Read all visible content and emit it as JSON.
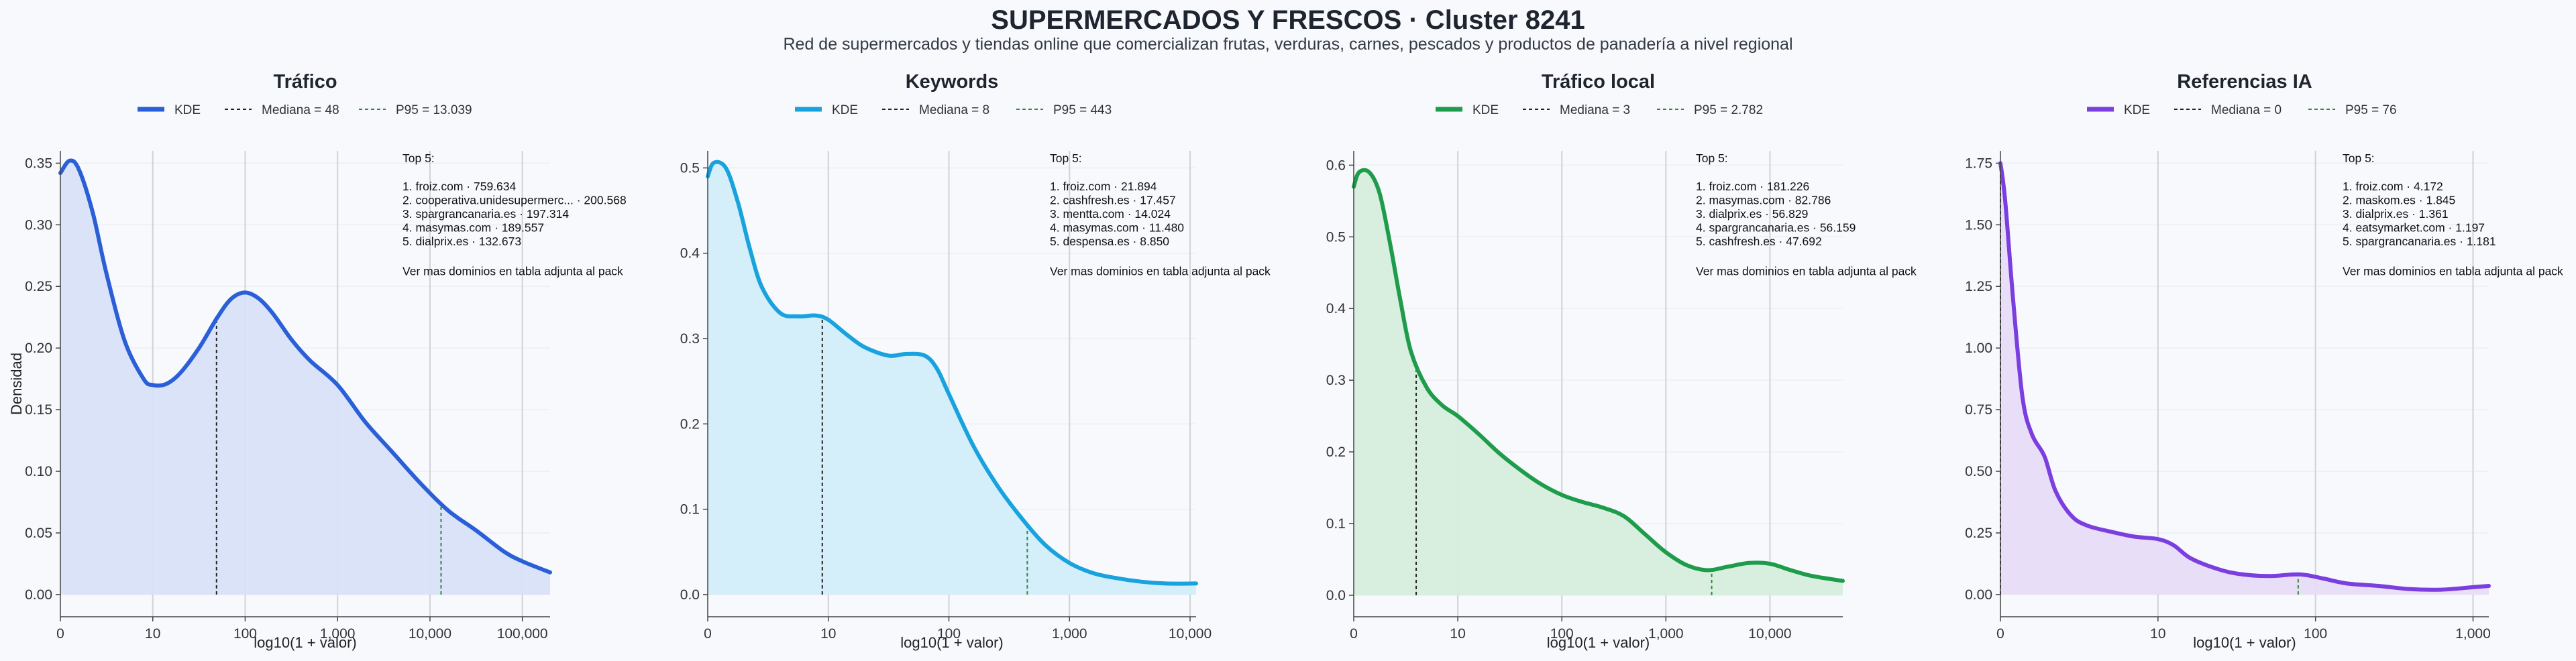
{
  "title": "SUPERMERCADOS Y FRESCOS · Cluster 8241",
  "subtitle": "Red de supermercados y tiendas online que comercializan frutas, verduras, carnes, pescados y productos de panadería a nivel regional",
  "chart_data": [
    {
      "type": "area",
      "title": "Tráfico",
      "color": "#2a5fd8",
      "fill": "#d8e2f8",
      "legend": [
        "KDE",
        "Mediana = 48",
        "P95 = 13.039"
      ],
      "xlabel": "log10(1 + valor)",
      "ylabel": "Densidad",
      "xlim": [
        0,
        5.3
      ],
      "ylim": [
        -0.018,
        0.36
      ],
      "xticks": [
        0,
        1,
        2,
        3,
        4,
        5
      ],
      "xtick_labels": [
        "0",
        "10",
        "100",
        "1,000",
        "10,000",
        "100,000"
      ],
      "yticks": [
        0,
        0.05,
        0.1,
        0.15,
        0.2,
        0.25,
        0.3,
        0.35
      ],
      "ytick_labels": [
        "0.00",
        "0.05",
        "0.10",
        "0.15",
        "0.20",
        "0.25",
        "0.30",
        "0.35"
      ],
      "median_x": 1.69,
      "p95_x": 4.12,
      "x": [
        0,
        0.1,
        0.2,
        0.35,
        0.5,
        0.7,
        0.9,
        1.0,
        1.15,
        1.3,
        1.5,
        1.7,
        1.85,
        2.0,
        2.15,
        2.3,
        2.5,
        2.7,
        3.0,
        3.3,
        3.6,
        3.9,
        4.2,
        4.5,
        4.8,
        5.0,
        5.3
      ],
      "y": [
        0.342,
        0.352,
        0.345,
        0.31,
        0.26,
        0.205,
        0.175,
        0.17,
        0.171,
        0.18,
        0.2,
        0.225,
        0.24,
        0.245,
        0.24,
        0.228,
        0.207,
        0.19,
        0.17,
        0.14,
        0.115,
        0.09,
        0.068,
        0.052,
        0.035,
        0.027,
        0.018
      ],
      "top5_title": "Top 5:",
      "top5": [
        "1. froiz.com · 759.634",
        "2. cooperativa.unidesupermerc... · 200.568",
        "3. spargrancanaria.es · 197.314",
        "4. masymas.com · 189.557",
        "5. dialprix.es · 132.673"
      ],
      "note": "Ver mas dominios en tabla adjunta al pack"
    },
    {
      "type": "area",
      "title": "Keywords",
      "color": "#19a3de",
      "fill": "#d2eefa",
      "legend": [
        "KDE",
        "Mediana = 8",
        "P95 = 443"
      ],
      "xlabel": "log10(1 + valor)",
      "ylabel": "",
      "xlim": [
        0,
        4.05
      ],
      "ylim": [
        -0.026,
        0.52
      ],
      "xticks": [
        0,
        1,
        2,
        3,
        4
      ],
      "xtick_labels": [
        "0",
        "10",
        "100",
        "1,000",
        "10,000"
      ],
      "yticks": [
        0,
        0.1,
        0.2,
        0.3,
        0.4,
        0.5
      ],
      "ytick_labels": [
        "0.0",
        "0.1",
        "0.2",
        "0.3",
        "0.4",
        "0.5"
      ],
      "median_x": 0.95,
      "p95_x": 2.65,
      "x": [
        0,
        0.05,
        0.15,
        0.25,
        0.35,
        0.45,
        0.6,
        0.75,
        0.9,
        1.0,
        1.15,
        1.3,
        1.5,
        1.65,
        1.8,
        1.9,
        2.0,
        2.2,
        2.4,
        2.6,
        2.8,
        3.0,
        3.2,
        3.4,
        3.6,
        3.8,
        4.05
      ],
      "y": [
        0.49,
        0.506,
        0.5,
        0.46,
        0.405,
        0.36,
        0.33,
        0.326,
        0.327,
        0.322,
        0.305,
        0.29,
        0.28,
        0.282,
        0.28,
        0.265,
        0.235,
        0.175,
        0.128,
        0.09,
        0.058,
        0.037,
        0.025,
        0.019,
        0.015,
        0.013,
        0.013
      ],
      "top5_title": "Top 5:",
      "top5": [
        "1. froiz.com · 21.894",
        "2. cashfresh.es · 17.457",
        "3. mentta.com · 14.024",
        "4. masymas.com · 11.480",
        "5. despensa.es · 8.850"
      ],
      "note": "Ver mas dominios en tabla adjunta al pack"
    },
    {
      "type": "area",
      "title": "Tráfico local",
      "color": "#1f9c4b",
      "fill": "#d6eedd",
      "legend": [
        "KDE",
        "Mediana = 3",
        "P95 = 2.782"
      ],
      "xlabel": "log10(1 + valor)",
      "ylabel": "",
      "xlim": [
        0,
        4.7
      ],
      "ylim": [
        -0.03,
        0.62
      ],
      "xticks": [
        0,
        1,
        2,
        3,
        4
      ],
      "xtick_labels": [
        "0",
        "10",
        "100",
        "1,000",
        "10,000"
      ],
      "yticks": [
        0,
        0.1,
        0.2,
        0.3,
        0.4,
        0.5,
        0.6
      ],
      "ytick_labels": [
        "0.0",
        "0.1",
        "0.2",
        "0.3",
        "0.4",
        "0.5",
        "0.6"
      ],
      "median_x": 0.6,
      "p95_x": 3.44,
      "x": [
        0,
        0.05,
        0.15,
        0.25,
        0.35,
        0.45,
        0.55,
        0.7,
        0.85,
        1.0,
        1.2,
        1.4,
        1.6,
        1.8,
        2.0,
        2.2,
        2.4,
        2.6,
        2.8,
        3.0,
        3.2,
        3.4,
        3.6,
        3.8,
        4.0,
        4.2,
        4.4,
        4.7
      ],
      "y": [
        0.57,
        0.59,
        0.59,
        0.56,
        0.49,
        0.41,
        0.34,
        0.29,
        0.265,
        0.25,
        0.225,
        0.198,
        0.175,
        0.155,
        0.14,
        0.13,
        0.122,
        0.11,
        0.085,
        0.06,
        0.042,
        0.035,
        0.04,
        0.045,
        0.044,
        0.035,
        0.027,
        0.02
      ],
      "top5_title": "Top 5:",
      "top5": [
        "1. froiz.com · 181.226",
        "2. masymas.com · 82.786",
        "3. dialprix.es · 56.829",
        "4. spargrancanaria.es · 56.159",
        "5. cashfresh.es · 47.692"
      ],
      "note": "Ver mas dominios en tabla adjunta al pack"
    },
    {
      "type": "area",
      "title": "Referencias IA",
      "color": "#7b3fdf",
      "fill": "#e8dcf8",
      "legend": [
        "KDE",
        "Mediana = 0",
        "P95 = 76"
      ],
      "xlabel": "log10(1 + valor)",
      "ylabel": "",
      "xlim": [
        0,
        3.1
      ],
      "ylim": [
        -0.09,
        1.8
      ],
      "xticks": [
        0,
        1,
        2,
        3
      ],
      "xtick_labels": [
        "0",
        "10",
        "100",
        "1,000"
      ],
      "yticks": [
        0,
        0.25,
        0.5,
        0.75,
        1,
        1.25,
        1.5,
        1.75
      ],
      "ytick_labels": [
        "0.00",
        "0.25",
        "0.50",
        "0.75",
        "1.00",
        "1.25",
        "1.50",
        "1.75"
      ],
      "median_x": 0,
      "p95_x": 1.89,
      "x": [
        0,
        0.03,
        0.08,
        0.14,
        0.2,
        0.28,
        0.35,
        0.45,
        0.55,
        0.7,
        0.85,
        1.0,
        1.1,
        1.2,
        1.35,
        1.5,
        1.7,
        1.9,
        2.05,
        2.2,
        2.4,
        2.6,
        2.8,
        3.0,
        3.1
      ],
      "y": [
        1.75,
        1.6,
        1.2,
        0.8,
        0.65,
        0.56,
        0.42,
        0.32,
        0.28,
        0.255,
        0.235,
        0.225,
        0.2,
        0.15,
        0.11,
        0.085,
        0.075,
        0.082,
        0.065,
        0.045,
        0.035,
        0.022,
        0.02,
        0.03,
        0.035
      ],
      "top5_title": "Top 5:",
      "top5": [
        "1. froiz.com · 4.172",
        "2. maskom.es · 1.845",
        "3. dialprix.es · 1.361",
        "4. eatsymarket.com · 1.197",
        "5. spargrancanaria.es · 1.181"
      ],
      "note": "Ver mas dominios en tabla adjunta al pack"
    }
  ]
}
